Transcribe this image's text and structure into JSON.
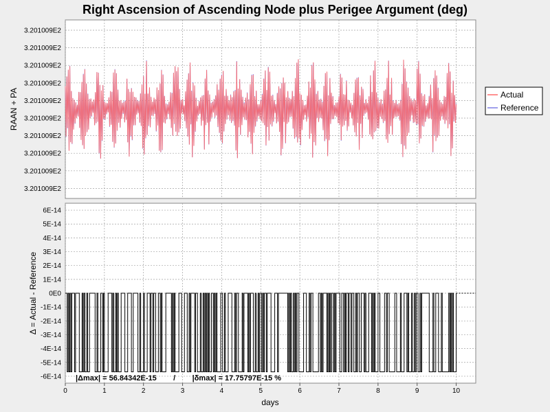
{
  "chart_data": [
    {
      "type": "line",
      "title": "Right Ascension of Ascending Node plus Perigee Argument (deg)",
      "ylabel": "RAAN + PA",
      "xlabel": "",
      "xlim": [
        0,
        10.5
      ],
      "x_ticks": [
        "0",
        "1",
        "2",
        "3",
        "4",
        "5",
        "6",
        "7",
        "8",
        "9",
        "10"
      ],
      "y_ticks": [
        "3.201009E2",
        "3.201009E2",
        "3.201009E2",
        "3.201009E2",
        "3.201009E2",
        "3.201009E2",
        "3.201009E2",
        "3.201009E2",
        "3.201009E2",
        "3.201009E2"
      ],
      "grid": true,
      "legend_position": "right",
      "series": [
        {
          "name": "Actual",
          "color": "#ff6b6b",
          "note": "rapid oscillation across 0-10 days, approx. constant 3.201009E2"
        },
        {
          "name": "Reference",
          "color": "#7f7fe6",
          "note": "overlaps Actual"
        }
      ]
    },
    {
      "type": "line",
      "ylabel": "Δ = Actual - Reference",
      "xlabel": "days",
      "xlim": [
        0,
        10.5
      ],
      "ylim": [
        -6.5e-14,
        6.5e-14
      ],
      "x_ticks": [
        "0",
        "1",
        "2",
        "3",
        "4",
        "5",
        "6",
        "7",
        "8",
        "9",
        "10"
      ],
      "y_ticks": [
        "6E-14",
        "5E-14",
        "4E-14",
        "3E-14",
        "2E-14",
        "1E-14",
        "0E0",
        "-1E-14",
        "-2E-14",
        "-3E-14",
        "-4E-14",
        "-5E-14",
        "-6E-14"
      ],
      "grid": true,
      "series": [
        {
          "name": "Δ",
          "color": "#000000",
          "values_range": [
            -5.684342e-14,
            0
          ]
        }
      ],
      "annotation": "|Δmax| = 56.84342E-15        /        |δmax| = 17.75797E-15 %"
    }
  ]
}
